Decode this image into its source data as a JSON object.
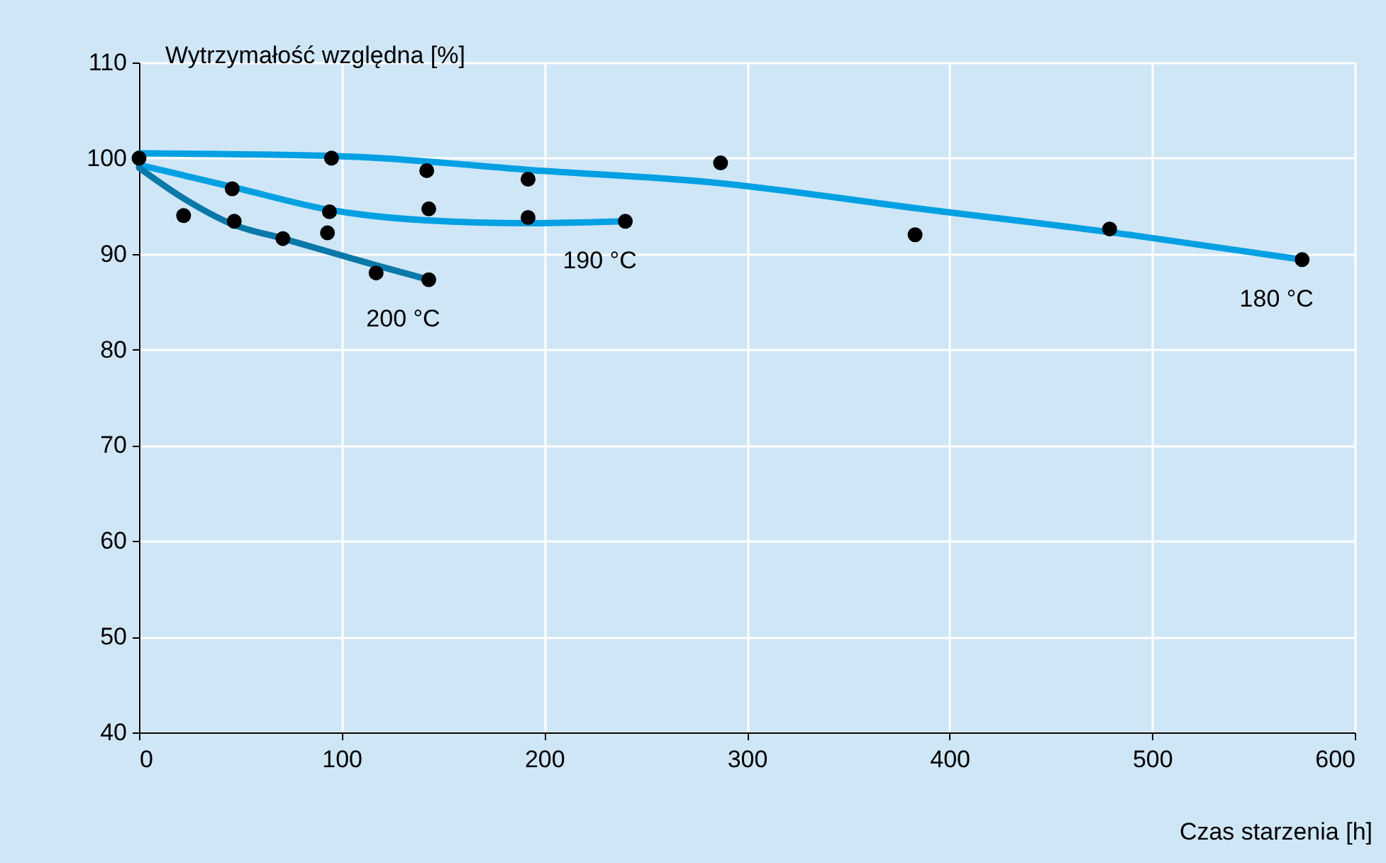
{
  "chart_data": {
    "type": "line",
    "xlabel": "Czas starzenia [h]",
    "ylabel": "Wytrzymałość względna [%]",
    "xlim": [
      0,
      600
    ],
    "xticks": [
      0,
      100,
      200,
      300,
      400,
      500,
      600
    ],
    "ylim": [
      40,
      110
    ],
    "yticks": [
      40,
      50,
      60,
      70,
      80,
      90,
      100,
      110
    ],
    "grid": true,
    "line_style": "solid",
    "series": [
      {
        "type": "scatter",
        "marker": "circle",
        "color": "#000000",
        "x": [
          0,
          22,
          46,
          47,
          71,
          95,
          94,
          93,
          117,
          142,
          143,
          143,
          192,
          192,
          240,
          287,
          383,
          479,
          574
        ],
        "values": [
          100,
          94.0,
          96.8,
          93.4,
          91.6,
          100,
          94.4,
          92.2,
          88.0,
          98.7,
          94.7,
          87.3,
          97.8,
          93.8,
          93.4,
          99.5,
          92.0,
          92.6,
          89.4
        ]
      },
      {
        "name": "180 °C",
        "marker": "none",
        "color": "#00a0e3",
        "x": [
          0,
          100,
          197,
          281,
          386,
          492,
          574
        ],
        "values": [
          100.5,
          100.2,
          98.7,
          97.5,
          94.7,
          91.9,
          89.4
        ]
      },
      {
        "name": "190 °C",
        "marker": "none",
        "color": "#00a0e3",
        "x": [
          0,
          46,
          94,
          142,
          192,
          240
        ],
        "values": [
          99.3,
          97,
          94.6,
          93.5,
          93.2,
          93.4
        ]
      },
      {
        "name": "200 °C",
        "marker": "none",
        "color": "#0a78a8",
        "x": [
          0,
          22,
          46,
          71,
          117,
          143
        ],
        "values": [
          99,
          95.8,
          93.1,
          91.6,
          88.8,
          87.3
        ]
      }
    ]
  }
}
